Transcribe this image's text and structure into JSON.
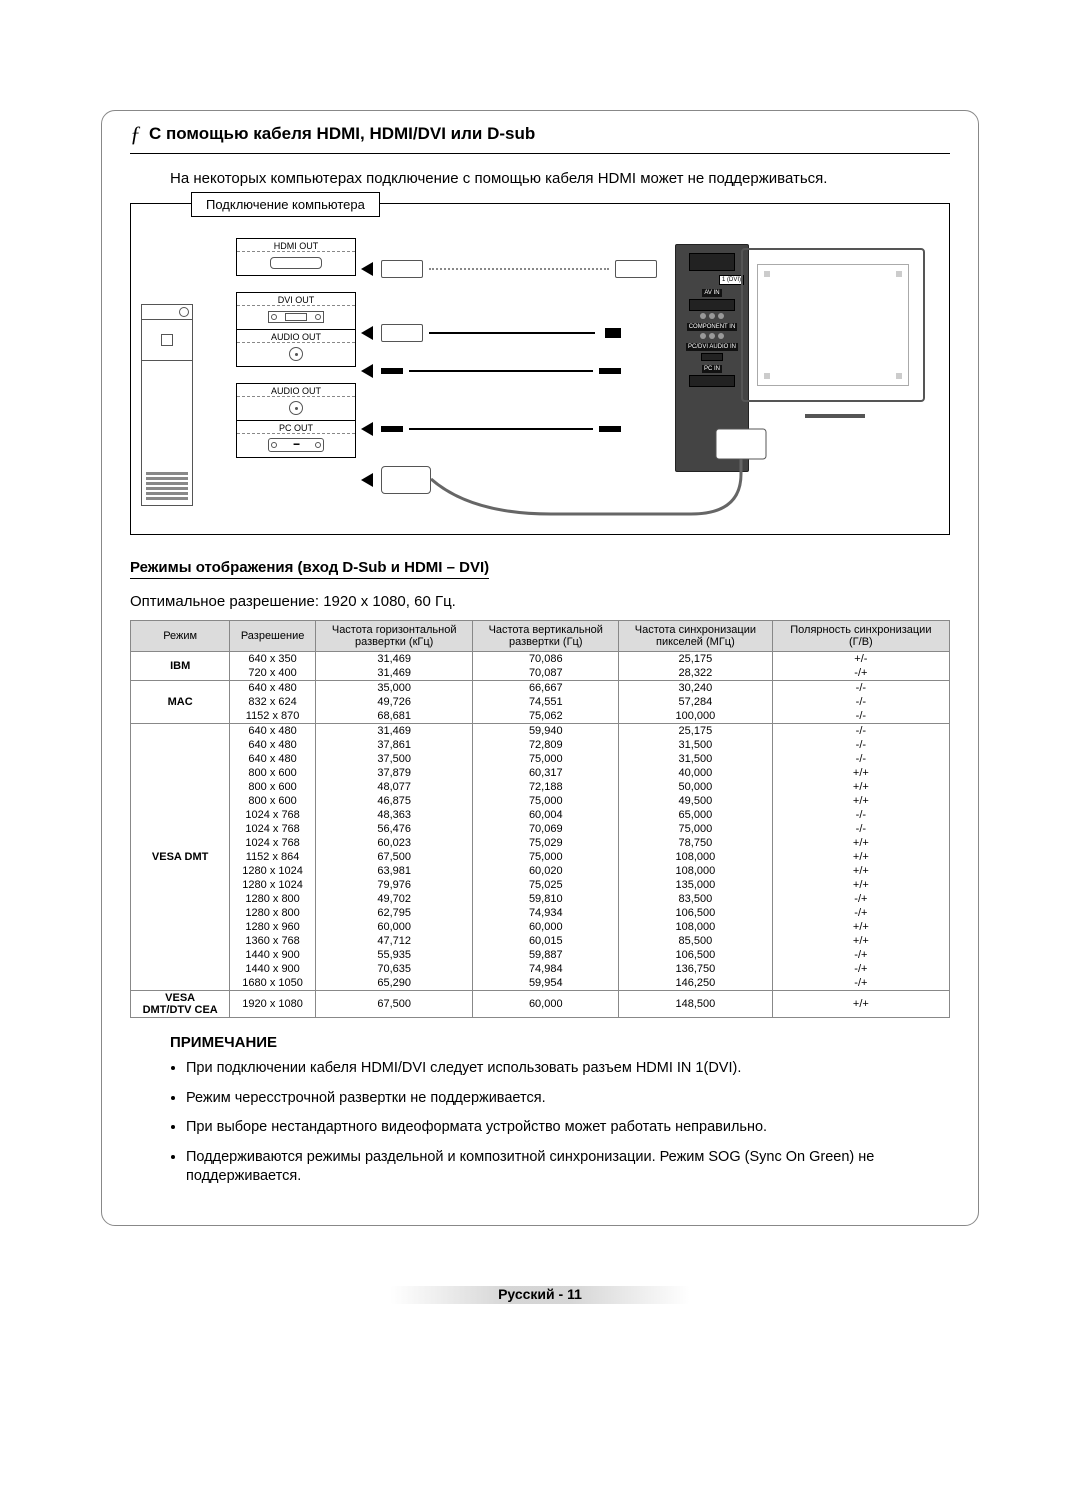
{
  "section": {
    "marker": "ƒ",
    "title": "С помощью кабеля HDMI, HDMI/DVI или D-sub"
  },
  "intro": "На некоторых компьютерах подключение с помощью кабеля HDMI может не поддерживаться.",
  "diagram": {
    "tab": "Подключение компьютера",
    "ports": {
      "hdmi": "HDMI OUT",
      "dvi": "DVI OUT",
      "audio1": "AUDIO OUT",
      "audio2": "AUDIO OUT",
      "pc": "PC OUT"
    },
    "tv_labels": {
      "hdmi": "1 (DVI)",
      "avin": "AV IN",
      "component": "COMPONENT IN",
      "pcdvi": "PC/DVI AUDIO IN",
      "pcin": "PC IN"
    },
    "colors": {
      "panel_bg": "#444444",
      "panel_text": "#ffffff"
    }
  },
  "modes_heading": "Режимы отображения (вход D-Sub и HDMI – DVI)",
  "optimal": "Оптимальное разрешение: 1920 x 1080, 60 Гц.",
  "table": {
    "columns": [
      "Режим",
      "Разрешение",
      "Частота горизонтальной развертки (кГц)",
      "Частота вертикальной развертки (Гц)",
      "Частота синхронизации пикселей (МГц)",
      "Полярность синхронизации (Г/В)"
    ],
    "groups": [
      {
        "mode": "IBM",
        "rows": [
          [
            "640 x 350",
            "31,469",
            "70,086",
            "25,175",
            "+/-"
          ],
          [
            "720 x 400",
            "31,469",
            "70,087",
            "28,322",
            "-/+"
          ]
        ]
      },
      {
        "mode": "MAC",
        "rows": [
          [
            "640 x 480",
            "35,000",
            "66,667",
            "30,240",
            "-/-"
          ],
          [
            "832 x 624",
            "49,726",
            "74,551",
            "57,284",
            "-/-"
          ],
          [
            "1152 x 870",
            "68,681",
            "75,062",
            "100,000",
            "-/-"
          ]
        ]
      },
      {
        "mode": "VESA DMT",
        "rows": [
          [
            "640 x 480",
            "31,469",
            "59,940",
            "25,175",
            "-/-"
          ],
          [
            "640 x 480",
            "37,861",
            "72,809",
            "31,500",
            "-/-"
          ],
          [
            "640 x 480",
            "37,500",
            "75,000",
            "31,500",
            "-/-"
          ],
          [
            "800 x 600",
            "37,879",
            "60,317",
            "40,000",
            "+/+"
          ],
          [
            "800 x 600",
            "48,077",
            "72,188",
            "50,000",
            "+/+"
          ],
          [
            "800 x 600",
            "46,875",
            "75,000",
            "49,500",
            "+/+"
          ],
          [
            "1024 x 768",
            "48,363",
            "60,004",
            "65,000",
            "-/-"
          ],
          [
            "1024 x 768",
            "56,476",
            "70,069",
            "75,000",
            "-/-"
          ],
          [
            "1024 x 768",
            "60,023",
            "75,029",
            "78,750",
            "+/+"
          ],
          [
            "1152 x 864",
            "67,500",
            "75,000",
            "108,000",
            "+/+"
          ],
          [
            "1280 x 1024",
            "63,981",
            "60,020",
            "108,000",
            "+/+"
          ],
          [
            "1280 x 1024",
            "79,976",
            "75,025",
            "135,000",
            "+/+"
          ],
          [
            "1280 x 800",
            "49,702",
            "59,810",
            "83,500",
            "-/+"
          ],
          [
            "1280 x 800",
            "62,795",
            "74,934",
            "106,500",
            "-/+"
          ],
          [
            "1280 x 960",
            "60,000",
            "60,000",
            "108,000",
            "+/+"
          ],
          [
            "1360 x 768",
            "47,712",
            "60,015",
            "85,500",
            "+/+"
          ],
          [
            "1440 x 900",
            "55,935",
            "59,887",
            "106,500",
            "-/+"
          ],
          [
            "1440 x 900",
            "70,635",
            "74,984",
            "136,750",
            "-/+"
          ],
          [
            "1680 x 1050",
            "65,290",
            "59,954",
            "146,250",
            "-/+"
          ]
        ]
      },
      {
        "mode": "VESA DMT/DTV CEA",
        "rows": [
          [
            "1920 x 1080",
            "67,500",
            "60,000",
            "148,500",
            "+/+"
          ]
        ]
      }
    ],
    "header_bg": "#dcdcdc",
    "border": "#888888"
  },
  "note_heading": "ПРИМЕЧАНИЕ",
  "notes": [
    "При подключении кабеля HDMI/DVI следует использовать разъем HDMI IN 1(DVI).",
    "Режим чересстрочной развертки не поддерживается.",
    "При выборе нестандартного видеоформата устройство может работать неправильно.",
    "Поддерживаются режимы раздельной и композитной синхронизации. Режим SOG (Sync On Green) не поддерживается."
  ],
  "footer": {
    "lang": "Русский",
    "sep": " - ",
    "page": "11"
  }
}
